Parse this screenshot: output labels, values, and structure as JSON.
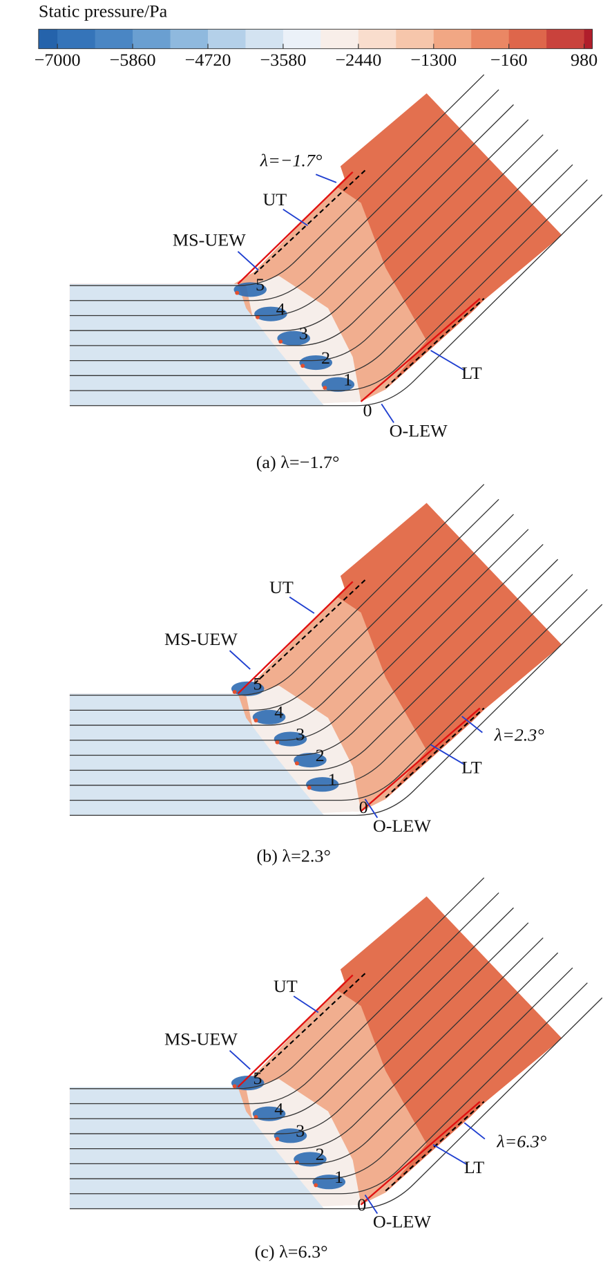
{
  "colorbar": {
    "title": "Static pressure/Pa",
    "ticks": [
      {
        "value": -7000,
        "label": "−7000"
      },
      {
        "value": -5860,
        "label": "−5860"
      },
      {
        "value": -4720,
        "label": "−4720"
      },
      {
        "value": -3580,
        "label": "−3580"
      },
      {
        "value": -2440,
        "label": "−2440"
      },
      {
        "value": -1300,
        "label": "−1300"
      },
      {
        "value": -160,
        "label": "−160"
      },
      980
    ],
    "colors": [
      "#2563ab",
      "#3574b9",
      "#4a86c4",
      "#6a9fd1",
      "#8fb9de",
      "#b4d0e9",
      "#d3e3f1",
      "#ebf1f8",
      "#f8eee9",
      "#f9ddcd",
      "#f6c6ab",
      "#f1a784",
      "#ea8764",
      "#de664b",
      "#c9423c",
      "#b01e2b"
    ]
  },
  "panels": [
    {
      "lambda_label": "λ=−1.7°",
      "ut": "UT",
      "ms_uew": "MS-UEW",
      "lt": "LT",
      "o_lew": "O-LEW",
      "holes": [
        "0",
        "1",
        "2",
        "3",
        "4",
        "5"
      ],
      "caption": "(a) λ=−1.7°"
    },
    {
      "lambda_label": "λ=2.3°",
      "ut": "UT",
      "ms_uew": "MS-UEW",
      "lt": "LT",
      "o_lew": "O-LEW",
      "holes": [
        "0",
        "1",
        "2",
        "3",
        "4",
        "5"
      ],
      "caption": "(b) λ=2.3°"
    },
    {
      "lambda_label": "λ=6.3°",
      "ut": "UT",
      "ms_uew": "MS-UEW",
      "lt": "LT",
      "o_lew": "O-LEW",
      "holes": [
        "0",
        "1",
        "2",
        "3",
        "4",
        "5"
      ],
      "caption": "(c) λ=6.3°"
    }
  ]
}
